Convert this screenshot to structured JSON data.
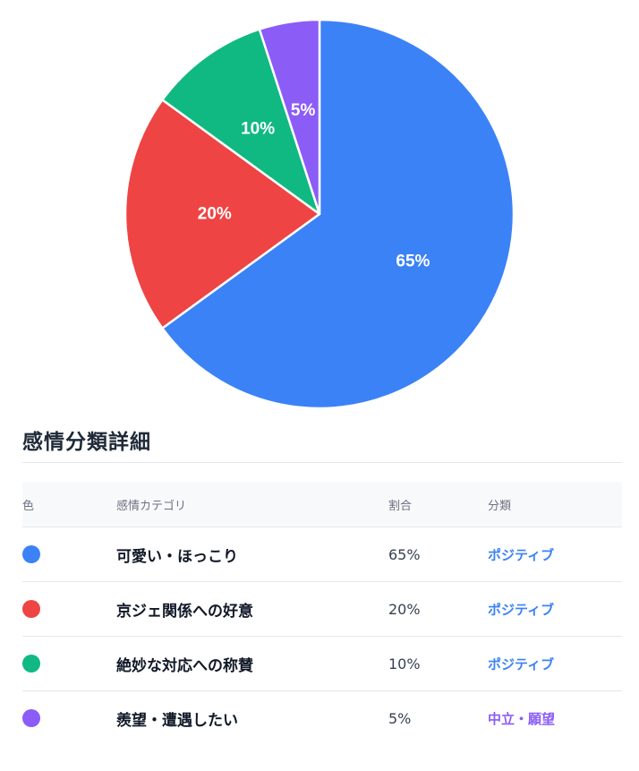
{
  "chart_data": {
    "type": "pie",
    "slices": [
      {
        "label": "65%",
        "value": 65,
        "color": "#3b82f6"
      },
      {
        "label": "20%",
        "value": 20,
        "color": "#ef4444"
      },
      {
        "label": "10%",
        "value": 10,
        "color": "#10b981"
      },
      {
        "label": "5%",
        "value": 5,
        "color": "#8b5cf6"
      }
    ]
  },
  "section": {
    "title": "感情分類詳細"
  },
  "table": {
    "headers": {
      "color": "色",
      "category": "感情カテゴリ",
      "ratio": "割合",
      "class": "分類"
    },
    "rows": [
      {
        "color": "#3b82f6",
        "category": "可愛い・ほっこり",
        "ratio": "65%",
        "class": "ポジティブ",
        "class_color": "#3b82f6"
      },
      {
        "color": "#ef4444",
        "category": "京ジェ関係への好意",
        "ratio": "20%",
        "class": "ポジティブ",
        "class_color": "#3b82f6"
      },
      {
        "color": "#10b981",
        "category": "絶妙な対応への称賛",
        "ratio": "10%",
        "class": "ポジティブ",
        "class_color": "#3b82f6"
      },
      {
        "color": "#8b5cf6",
        "category": "羨望・遭遇したい",
        "ratio": "5%",
        "class": "中立・願望",
        "class_color": "#8b5cf6"
      }
    ]
  }
}
